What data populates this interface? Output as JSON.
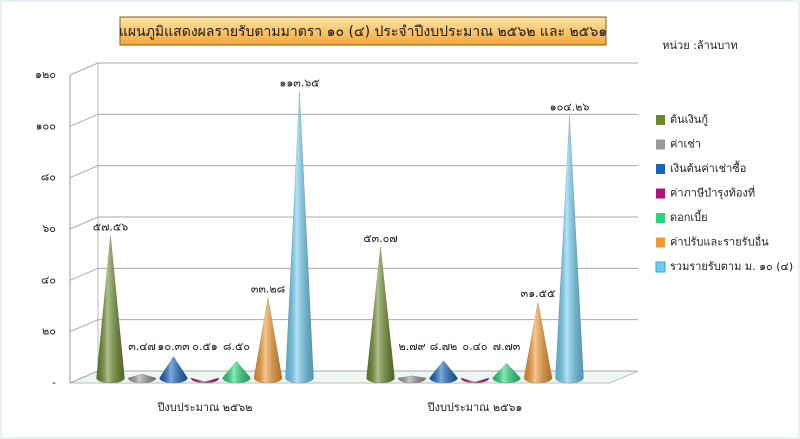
{
  "chart_data": {
    "type": "cone",
    "title": "แผนภูมิแสดงผลรายรับตามมาตรา ๑๐ (๔) ประจำปีงบประมาณ ๒๕๖๒ และ ๒๕๖๑",
    "unit_label": "หน่วย :ล้านบาท",
    "categories": [
      "ปีงบประมาณ ๒๕๖๒",
      "ปีงบประมาณ ๒๕๖๑"
    ],
    "ylim": [
      0,
      120
    ],
    "yticks": [
      {
        "value": 0,
        "label": "-"
      },
      {
        "value": 20,
        "label": "๒๐"
      },
      {
        "value": 40,
        "label": "๔๐"
      },
      {
        "value": 60,
        "label": "๖๐"
      },
      {
        "value": 80,
        "label": "๘๐"
      },
      {
        "value": 100,
        "label": "๑๐๐"
      },
      {
        "value": 120,
        "label": "๑๒๐"
      }
    ],
    "grid": true,
    "legend": "right",
    "series": [
      {
        "name": "ต้นเงินกู้",
        "color": "#6b8a2a",
        "values": [
          57.56,
          53.07
        ],
        "value_labels": [
          "๕๗.๕๖",
          "๕๓.๐๗"
        ]
      },
      {
        "name": "ค่าเช่า",
        "color": "#9a9a9a",
        "values": [
          3.47,
          2.79
        ],
        "value_labels": [
          "๓.๔๗",
          "๒.๗๙"
        ]
      },
      {
        "name": "เงินต้นค่าเช่าซื้อ",
        "color": "#1565c0",
        "values": [
          10.33,
          8.72
        ],
        "value_labels": [
          "๑๐.๓๓",
          "๘.๗๒"
        ]
      },
      {
        "name": "ค่าภาษีบำรุงท้องที่",
        "color": "#b0107a",
        "values": [
          0.51,
          0.4
        ],
        "value_labels": [
          "๐.๕๑",
          "๐.๔๐"
        ]
      },
      {
        "name": "ดอกเบี้ย",
        "color": "#22d87a",
        "values": [
          8.5,
          7.73
        ],
        "value_labels": [
          "๘.๕๐",
          "๗.๗๓"
        ]
      },
      {
        "name": "ค่าปรับและรายรับอื่น",
        "color": "#f39a2e",
        "values": [
          33.28,
          31.55
        ],
        "value_labels": [
          "๓๓.๒๘",
          "๓๑.๕๕"
        ]
      },
      {
        "name": "รวมรายรับตาม ม. ๑๐ (๔)",
        "color": "#6fcdf2",
        "values": [
          113.65,
          104.26
        ],
        "value_labels": [
          "๑๑๓.๖๕",
          "๑๐๔.๒๖"
        ]
      }
    ]
  }
}
